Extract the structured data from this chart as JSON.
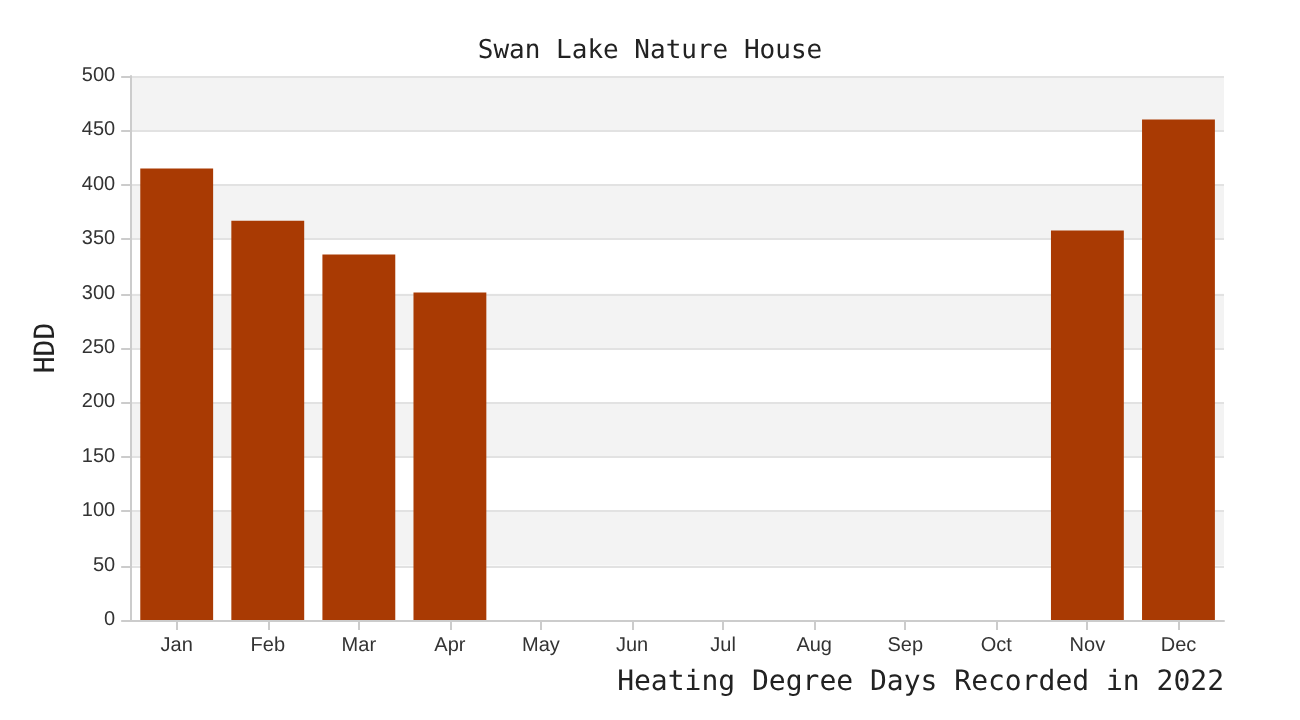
{
  "chart_data": {
    "type": "bar",
    "title": "Swan Lake Nature House",
    "xlabel": "Heating Degree Days Recorded in 2022",
    "ylabel": "HDD",
    "categories": [
      "Jan",
      "Feb",
      "Mar",
      "Apr",
      "May",
      "Jun",
      "Jul",
      "Aug",
      "Sep",
      "Oct",
      "Nov",
      "Dec"
    ],
    "values": [
      415,
      367,
      336,
      301,
      null,
      null,
      null,
      null,
      null,
      null,
      358,
      460
    ],
    "color": "#a93a03",
    "ylim": [
      0,
      500
    ],
    "yticks": [
      0,
      50,
      100,
      150,
      200,
      250,
      300,
      350,
      400,
      450,
      500
    ],
    "grid": true
  }
}
